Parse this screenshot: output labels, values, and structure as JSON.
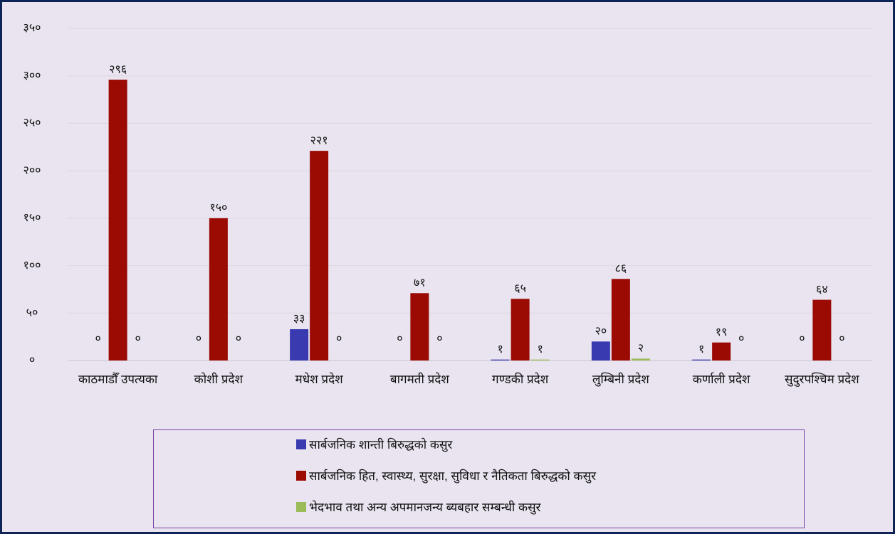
{
  "chart_data": {
    "type": "bar",
    "categories": [
      "काठमाडौँ उपत्यका",
      "कोशी प्रदेश",
      "मधेश प्रदेश",
      "बागमती प्रदेश",
      "गण्डकी प्रदेश",
      "लुम्बिनी प्रदेश",
      "कर्णाली प्रदेश",
      "सुदुरपश्चिम प्रदेश"
    ],
    "series": [
      {
        "name": "सार्बजनिक शान्ती बिरुद्धको कसुर",
        "color": "#3a3ab0",
        "values": [
          0,
          0,
          33,
          0,
          1,
          20,
          1,
          0
        ],
        "value_labels": [
          "०",
          "०",
          "३३",
          "०",
          "१",
          "२०",
          "१",
          "०"
        ]
      },
      {
        "name": "सार्बजनिक हित, स्वास्थ्य, सुरक्षा, सुविधा र नैतिकता बिरुद्धको कसुर",
        "color": "#9b0b04",
        "values": [
          296,
          150,
          221,
          71,
          65,
          86,
          19,
          64
        ],
        "value_labels": [
          "२९६",
          "१५०",
          "२२१",
          "७१",
          "६५",
          "८६",
          "१९",
          "६४"
        ]
      },
      {
        "name": "भेदभाव तथा अन्य अपमानजन्य ब्यबहार सम्बन्धी कसुर",
        "color": "#9bbb59",
        "values": [
          0,
          0,
          0,
          0,
          1,
          2,
          0,
          0
        ],
        "value_labels": [
          "०",
          "०",
          "०",
          "०",
          "१",
          "२",
          "०",
          "०"
        ]
      }
    ],
    "ylim": [
      0,
      350
    ],
    "yticks": [
      {
        "value": 0,
        "label": "०"
      },
      {
        "value": 50,
        "label": "५०"
      },
      {
        "value": 100,
        "label": "१००"
      },
      {
        "value": 150,
        "label": "१५०"
      },
      {
        "value": 200,
        "label": "२००"
      },
      {
        "value": 250,
        "label": "२५०"
      },
      {
        "value": 300,
        "label": "३००"
      },
      {
        "value": 350,
        "label": "३५०"
      }
    ],
    "grid": true
  }
}
